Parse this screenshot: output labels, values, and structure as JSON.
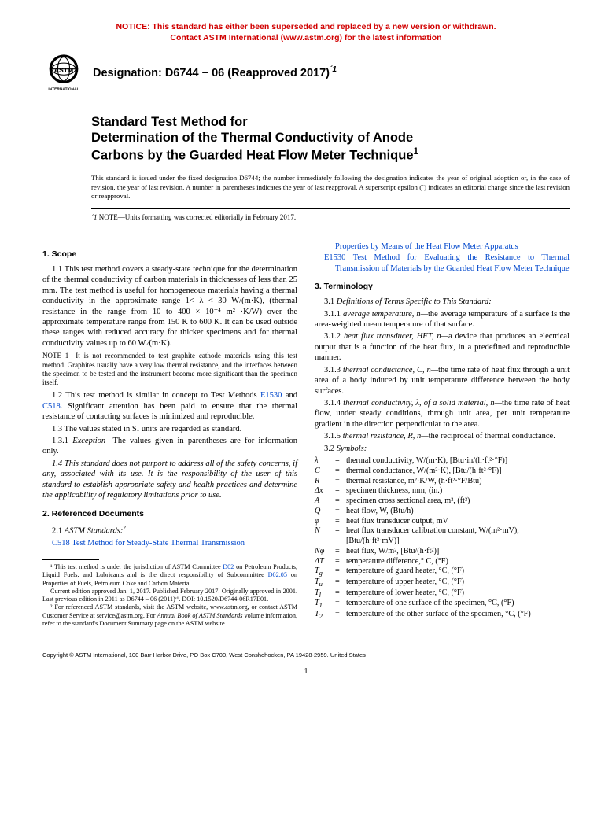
{
  "notice": {
    "line1": "NOTICE: This standard has either been superseded and replaced by a new version or withdrawn.",
    "line2": "Contact ASTM International (www.astm.org) for the latest information",
    "color": "#d10000"
  },
  "header": {
    "designation_label": "Designation: D6744 − 06 (Reapproved 2017)",
    "designation_sup": "´1",
    "logo_label": "INTERNATIONAL"
  },
  "title": {
    "line1": "Standard Test Method for",
    "line2": "Determination of the Thermal Conductivity of Anode",
    "line3": "Carbons by the Guarded Heat Flow Meter Technique",
    "sup": "1"
  },
  "issuance": "This standard is issued under the fixed designation D6744; the number immediately following the designation indicates the year of original adoption or, in the case of revision, the year of last revision. A number in parentheses indicates the year of last reapproval. A superscript epsilon (´) indicates an editorial change since the last revision or reapproval.",
  "eps_note": "NOTE—Units formatting was corrected editorially in February 2017.",
  "eps_prefix": "´1",
  "left": {
    "scope_head": "1. Scope",
    "p11": "1.1 This test method covers a steady-state technique for the determination of the thermal conductivity of carbon materials in thicknesses of less than 25 mm. The test method is useful for homogeneous materials having a thermal conductivity in the approximate range 1< λ < 30 W/(m·K), (thermal resistance in the range from 10 to 400 × 10⁻⁴ m² ·K/W) over the approximate temperature range from 150 K to 600 K. It can be used outside these ranges with reduced accuracy for thicker specimens and for thermal conductivity values up to 60 W ⁄(m·K).",
    "note1": "NOTE 1—It is not recommended to test graphite cathode materials using this test method. Graphites usually have a very low thermal resistance, and the interfaces between the specimen to be tested and the instrument become more significant than the specimen itself.",
    "p12a": "1.2 This test method is similar in concept to Test Methods ",
    "p12_e1530": "E1530",
    "p12b": " and ",
    "p12_c518": "C518",
    "p12c": ". Significant attention has been paid to ensure that the thermal resistance of contacting surfaces is minimized and reproducible.",
    "p13": "1.3 The values stated in SI units are regarded as standard.",
    "p131": "1.3.1 Exception—The values given in parentheses are for information only.",
    "p14": "1.4 This standard does not purport to address all of the safety concerns, if any, associated with its use. It is the responsibility of the user of this standard to establish appropriate safety and health practices and determine the applicability of regulatory limitations prior to use.",
    "refdocs_head": "2. Referenced Documents",
    "p21": "2.1 ASTM Standards:",
    "p21_sup": "2",
    "ref_c518": "C518 Test Method for Steady-State Thermal Transmission",
    "fn1": "¹ This test method is under the jurisdiction of ASTM Committee D02 on Petroleum Products, Liquid Fuels, and Lubricants and is the direct responsibility of Subcommittee D02.05 on Properties of Fuels, Petroleum Coke and Carbon Material.",
    "fn1b": "Current edition approved Jan. 1, 2017. Published February 2017. Originally approved in 2001. Last previous edition in 2011 as D6744 – 06 (2011)ᵋ¹. DOI: 10.1520/D6744-06R17E01.",
    "fn2": "² For referenced ASTM standards, visit the ASTM website, www.astm.org, or contact ASTM Customer Service at service@astm.org. For Annual Book of ASTM Standards volume information, refer to the standard's Document Summary page on the ASTM website."
  },
  "right": {
    "ref_cont": "Properties by Means of the Heat Flow Meter Apparatus",
    "ref_e1530": "E1530 Test Method for Evaluating the Resistance to Thermal Transmission of Materials by the Guarded Heat Flow Meter Technique",
    "term_head": "3. Terminology",
    "p31": "3.1 Definitions of Terms Specific to This Standard:",
    "p311": "3.1.1 average temperature, n—the average temperature of a surface is the area-weighted mean temperature of that surface.",
    "p312": "3.1.2 heat flux transducer, HFT, n—a device that produces an electrical output that is a function of the heat flux, in a predefined and reproducible manner.",
    "p313": "3.1.3 thermal conductance, C, n—the time rate of heat flux through a unit area of a body induced by unit temperature difference between the body surfaces.",
    "p314": "3.1.4 thermal conductivity, λ, of a solid material, n—the time rate of heat flow, under steady conditions, through unit area, per unit temperature gradient in the direction perpendicular to the area.",
    "p315": "3.1.5 thermal resistance, R, n—the reciprocal of thermal conductance.",
    "p32": "3.2 Symbols:"
  },
  "symbols": [
    {
      "s": "λ",
      "d": "thermal conductivity, W/(m·K), [Btu·in/(h·ft²·°F)]"
    },
    {
      "s": "C",
      "d": "thermal conductance, W/(m²·K), [Btu/(h·ft²·°F)]"
    },
    {
      "s": "R",
      "d": "thermal resistance, m²·K/W, (h·ft²·°F/Btu)"
    },
    {
      "s": "Δx",
      "d": "specimen thickness, mm, (in.)"
    },
    {
      "s": "A",
      "d": "specimen cross sectional area, m², (ft²)"
    },
    {
      "s": "Q",
      "d": "heat flow, W, (Btu/h)"
    },
    {
      "s": "φ",
      "d": "heat flux transducer output, mV"
    },
    {
      "s": "N",
      "d": "heat flux transducer calibration constant, W/(m²·mV), [Btu/(h·ft²·mV)]"
    },
    {
      "s": "Nφ",
      "d": "heat flux, W/m², [Btu/(h·ft²)]"
    },
    {
      "s": "ΔT",
      "d": "temperature difference,° C, (°F)"
    },
    {
      "s": "Tg",
      "d": "temperature of guard heater, °C, (°F)",
      "sub": "g"
    },
    {
      "s": "Tu",
      "d": "temperature of upper heater, °C, (°F)",
      "sub": "u"
    },
    {
      "s": "Tl",
      "d": "temperature of lower heater, °C, (°F)",
      "sub": "l"
    },
    {
      "s": "T1",
      "d": "temperature of one surface of the specimen, °C, (°F)",
      "sub": "1"
    },
    {
      "s": "T2",
      "d": "temperature of the other surface of the specimen, °C, (°F)",
      "sub": "2"
    }
  ],
  "copyright": "Copyright © ASTM International, 100 Barr Harbor Drive, PO Box C700, West Conshohocken, PA 19428-2959. United States",
  "pagenum": "1",
  "colors": {
    "link": "#0047cc",
    "text": "#000000",
    "notice": "#d10000"
  }
}
